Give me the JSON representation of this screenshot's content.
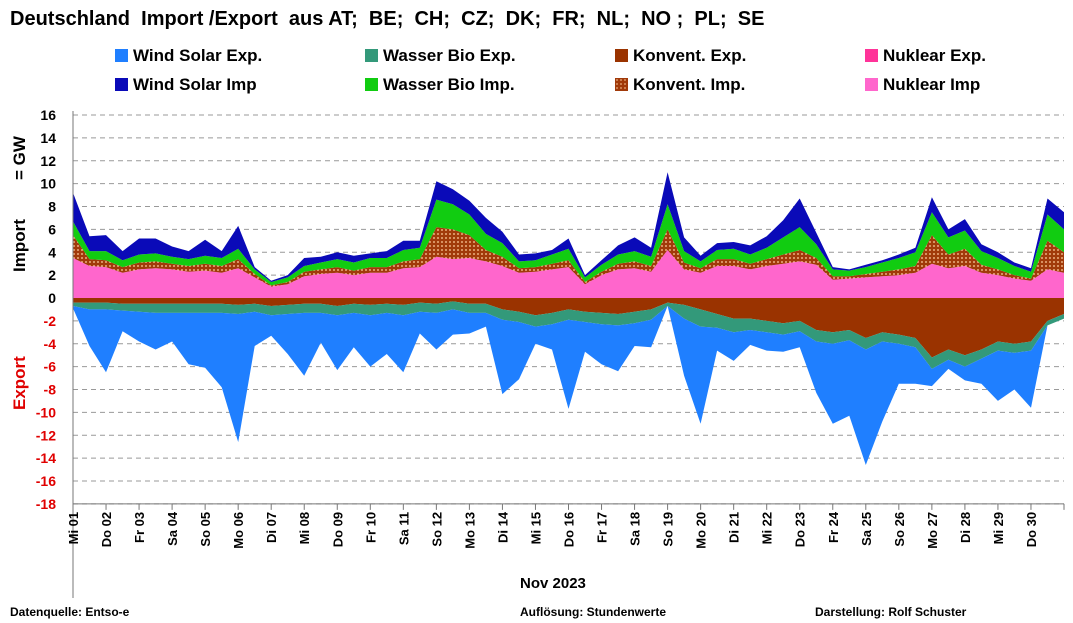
{
  "title": "Deutschland  Import /Export  aus AT;  BE;  CH;  CZ;  DK;  FR;  NL;  NO ;  PL;  SE",
  "legend": [
    {
      "label": "Wind Solar Exp.",
      "color": "#1f7fff"
    },
    {
      "label": "Wasser Bio Exp.",
      "color": "#33997a"
    },
    {
      "label": "Konvent. Exp.",
      "color": "#9a3300"
    },
    {
      "label": "Nuklear Exp.",
      "color": "#ff3399"
    },
    {
      "label": "Wind Solar Imp",
      "color": "#0a0ab8"
    },
    {
      "label": "Wasser Bio Imp.",
      "color": "#11cc11"
    },
    {
      "label": "Konvent. Imp.",
      "color": "#a13a0a"
    },
    {
      "label": "Nuklear Imp",
      "color": "#ff66cc"
    }
  ],
  "footer": {
    "source": "Datenquelle: Entso-e",
    "resolution": "Auflösung: Stundenwerte",
    "author": "Darstellung:  Rolf Schuster"
  },
  "chart_data": {
    "type": "area",
    "ylabel_import": "Import",
    "ylabel_gw": "= GW",
    "ylabel_export": "Export",
    "xlabel": "Nov 2023",
    "ylim": [
      -18,
      16
    ],
    "yticks": [
      16,
      14,
      12,
      10,
      8,
      6,
      4,
      2,
      0,
      -2,
      -4,
      -6,
      -8,
      -10,
      -12,
      -14,
      -16,
      -18
    ],
    "grid": true,
    "categories": [
      "Mi 01",
      "Do 02",
      "Fr 03",
      "Sa 04",
      "So 05",
      "Mo 06",
      "Di 07",
      "Mi 08",
      "Do 09",
      "Fr 10",
      "Sa 11",
      "So 12",
      "Mo 13",
      "Di 14",
      "Mi 15",
      "Do 16",
      "Fr 17",
      "Sa 18",
      "So 19",
      "Mo 20",
      "Di 21",
      "Mi 22",
      "Do 23",
      "Fr 24",
      "Sa 25",
      "So 26",
      "Mo 27",
      "Di 28",
      "Mi 29",
      "Do 30"
    ],
    "x": [
      0,
      0.5,
      1,
      1.5,
      2,
      2.5,
      3,
      3.5,
      4,
      4.5,
      5,
      5.5,
      6,
      6.5,
      7,
      7.5,
      8,
      8.5,
      9,
      9.5,
      10,
      10.5,
      11,
      11.5,
      12,
      12.5,
      13,
      13.5,
      14,
      14.5,
      15,
      15.5,
      16,
      16.5,
      17,
      17.5,
      18,
      18.5,
      19,
      19.5,
      20,
      20.5,
      21,
      21.5,
      22,
      22.5,
      23,
      23.5,
      24,
      24.5,
      25,
      25.5,
      26,
      26.5,
      27,
      27.5,
      28,
      28.5,
      29,
      29.5,
      30
    ],
    "import_series": [
      {
        "name": "Nuklear Imp",
        "values": [
          3.5,
          2.8,
          2.7,
          2.2,
          2.5,
          2.6,
          2.5,
          2.3,
          2.4,
          2.2,
          2.6,
          1.8,
          1.0,
          1.2,
          1.9,
          2.1,
          2.2,
          2.0,
          2.2,
          2.2,
          2.6,
          2.7,
          3.6,
          3.4,
          3.5,
          3.2,
          2.8,
          2.2,
          2.3,
          2.5,
          2.7,
          1.2,
          2.0,
          2.5,
          2.6,
          2.3,
          4.2,
          2.5,
          2.2,
          2.8,
          2.8,
          2.5,
          2.8,
          3.0,
          3.2,
          2.9,
          1.6,
          1.7,
          1.8,
          1.9,
          2.0,
          2.2,
          3.0,
          2.6,
          2.8,
          2.2,
          2.0,
          1.7,
          1.5,
          2.5,
          2.2
        ]
      },
      {
        "name": "Konvent. Imp.",
        "values": [
          2.0,
          0.6,
          0.6,
          0.5,
          0.6,
          0.6,
          0.5,
          0.5,
          0.6,
          0.6,
          0.8,
          0.3,
          0.1,
          0.2,
          0.4,
          0.4,
          0.5,
          0.4,
          0.5,
          0.5,
          0.6,
          0.7,
          2.6,
          2.6,
          2.0,
          1.0,
          0.8,
          0.4,
          0.4,
          0.5,
          0.6,
          0.2,
          0.3,
          0.5,
          0.6,
          0.5,
          1.8,
          0.6,
          0.4,
          0.6,
          0.6,
          0.5,
          0.6,
          0.8,
          1.0,
          0.6,
          0.3,
          0.2,
          0.3,
          0.4,
          0.5,
          0.6,
          2.5,
          1.2,
          1.5,
          0.7,
          0.5,
          0.3,
          0.2,
          2.5,
          1.8
        ]
      },
      {
        "name": "Wasser Bio Imp.",
        "values": [
          1.2,
          0.7,
          0.8,
          0.6,
          0.7,
          0.7,
          0.6,
          0.6,
          0.7,
          0.7,
          0.9,
          0.4,
          0.3,
          0.4,
          0.5,
          0.6,
          0.7,
          0.7,
          0.8,
          0.8,
          1.0,
          1.0,
          2.4,
          2.2,
          1.8,
          1.4,
          1.2,
          0.6,
          0.6,
          0.8,
          1.0,
          0.4,
          0.6,
          0.8,
          0.9,
          0.8,
          2.2,
          1.0,
          0.6,
          0.8,
          0.9,
          0.8,
          1.0,
          1.5,
          2.0,
          1.2,
          0.6,
          0.5,
          0.6,
          0.8,
          1.0,
          1.2,
          2.0,
          1.5,
          1.6,
          1.2,
          1.0,
          0.8,
          0.6,
          2.3,
          2.0
        ]
      },
      {
        "name": "Wind Solar Imp",
        "values": [
          2.5,
          1.3,
          1.4,
          0.8,
          1.4,
          1.3,
          0.9,
          0.7,
          1.4,
          0.6,
          2.0,
          0.2,
          0.1,
          0.2,
          0.7,
          0.5,
          0.6,
          0.6,
          0.4,
          0.6,
          0.8,
          0.6,
          1.6,
          1.3,
          1.2,
          1.4,
          1.0,
          0.6,
          0.6,
          0.4,
          0.9,
          0.2,
          0.4,
          0.8,
          1.2,
          0.8,
          2.8,
          1.2,
          0.5,
          0.6,
          0.6,
          0.8,
          1.0,
          1.5,
          2.5,
          1.0,
          0.2,
          0.1,
          0.2,
          0.2,
          0.3,
          0.4,
          1.3,
          0.7,
          1.0,
          0.6,
          0.5,
          0.3,
          0.3,
          1.4,
          1.5
        ]
      }
    ],
    "export_series": [
      {
        "name": "Konvent. Exp.",
        "values": [
          -0.4,
          -0.4,
          -0.4,
          -0.5,
          -0.5,
          -0.5,
          -0.5,
          -0.5,
          -0.5,
          -0.5,
          -0.6,
          -0.5,
          -0.7,
          -0.6,
          -0.5,
          -0.5,
          -0.7,
          -0.5,
          -0.6,
          -0.5,
          -0.6,
          -0.4,
          -0.5,
          -0.3,
          -0.5,
          -0.5,
          -1.0,
          -1.2,
          -1.5,
          -1.3,
          -1.0,
          -1.2,
          -1.3,
          -1.4,
          -1.2,
          -1.0,
          -0.4,
          -0.6,
          -1.0,
          -1.4,
          -1.8,
          -1.8,
          -2.0,
          -2.2,
          -2.0,
          -2.8,
          -3.0,
          -2.8,
          -3.5,
          -3.0,
          -3.2,
          -3.5,
          -5.2,
          -4.5,
          -5.0,
          -4.5,
          -3.8,
          -4.0,
          -3.8,
          -2.0,
          -1.4
        ]
      },
      {
        "name": "Wasser Bio Exp.",
        "values": [
          -0.3,
          -0.6,
          -0.6,
          -0.6,
          -0.7,
          -0.8,
          -0.8,
          -0.8,
          -0.8,
          -0.8,
          -0.8,
          -0.7,
          -0.8,
          -0.8,
          -0.8,
          -0.8,
          -0.8,
          -0.8,
          -0.9,
          -0.8,
          -0.9,
          -0.8,
          -0.8,
          -0.7,
          -0.8,
          -0.8,
          -0.9,
          -0.9,
          -1.0,
          -1.0,
          -0.9,
          -0.9,
          -1.0,
          -1.0,
          -1.0,
          -0.9,
          -0.3,
          -1.2,
          -1.5,
          -1.2,
          -1.2,
          -1.0,
          -1.0,
          -1.0,
          -0.9,
          -1.0,
          -1.0,
          -0.9,
          -1.0,
          -0.8,
          -0.8,
          -0.8,
          -1.0,
          -0.9,
          -1.0,
          -0.8,
          -0.8,
          -0.8,
          -0.8,
          -0.4,
          -0.4
        ]
      },
      {
        "name": "Wind Solar Exp.",
        "values": [
          -0.2,
          -3.2,
          -5.5,
          -1.8,
          -2.6,
          -3.2,
          -2.5,
          -4.5,
          -4.8,
          -6.5,
          -11.2,
          -3.0,
          -1.8,
          -3.5,
          -5.5,
          -2.6,
          -4.8,
          -3.0,
          -4.5,
          -3.6,
          -5.0,
          -1.9,
          -3.2,
          -2.2,
          -1.8,
          -1.2,
          -6.5,
          -5.0,
          -1.5,
          -2.2,
          -7.8,
          -2.6,
          -3.5,
          -4.0,
          -2.0,
          -2.4,
          0.0,
          -5.0,
          -8.5,
          -2.0,
          -2.5,
          -1.3,
          -1.6,
          -1.5,
          -1.4,
          -4.5,
          -7.0,
          -6.6,
          -10.1,
          -7.0,
          -3.5,
          -3.2,
          -1.5,
          -0.8,
          -1.2,
          -2.2,
          -4.4,
          -3.2,
          -5.0,
          0.0,
          0.0
        ]
      },
      {
        "name": "Nuklear Exp.",
        "values": [
          0,
          0,
          0,
          0,
          0,
          0,
          0,
          0,
          0,
          0,
          0,
          0,
          0,
          0,
          0,
          0,
          0,
          0,
          0,
          0,
          0,
          0,
          0,
          0,
          0,
          0,
          0,
          0,
          0,
          0,
          0,
          0,
          0,
          0,
          0,
          0,
          0,
          0,
          0,
          0,
          0,
          0,
          0,
          0,
          0,
          0,
          0,
          0,
          0,
          0,
          0,
          0,
          0,
          0,
          0,
          0,
          0,
          0,
          0,
          0,
          0
        ]
      }
    ]
  }
}
